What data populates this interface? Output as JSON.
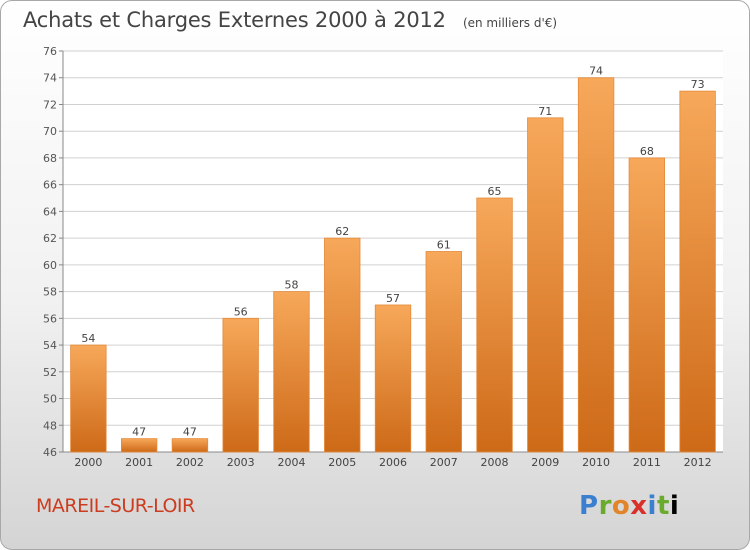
{
  "title": "Achats et Charges Externes 2000 à 2012",
  "subtitle": "(en milliers d'€)",
  "town": "MAREIL-SUR-LOIR",
  "brand": "Proxiti",
  "colors": {
    "bar_top": "#f7a85a",
    "bar_bottom": "#cd6a18",
    "town": "#cc3c1e"
  },
  "chart_data": {
    "type": "bar",
    "categories": [
      "2000",
      "2001",
      "2002",
      "2003",
      "2004",
      "2005",
      "2006",
      "2007",
      "2008",
      "2009",
      "2010",
      "2011",
      "2012"
    ],
    "values": [
      54,
      47,
      47,
      56,
      58,
      62,
      57,
      61,
      65,
      71,
      74,
      68,
      73
    ],
    "data_labels": [
      "54",
      "47",
      "47",
      "56",
      "58",
      "62",
      "57",
      "61",
      "65",
      "71",
      "74",
      "68",
      "73"
    ],
    "ylim": [
      46,
      76
    ],
    "yticks": [
      46,
      48,
      50,
      52,
      54,
      56,
      58,
      60,
      62,
      64,
      66,
      68,
      70,
      72,
      74,
      76
    ],
    "grid": true
  }
}
